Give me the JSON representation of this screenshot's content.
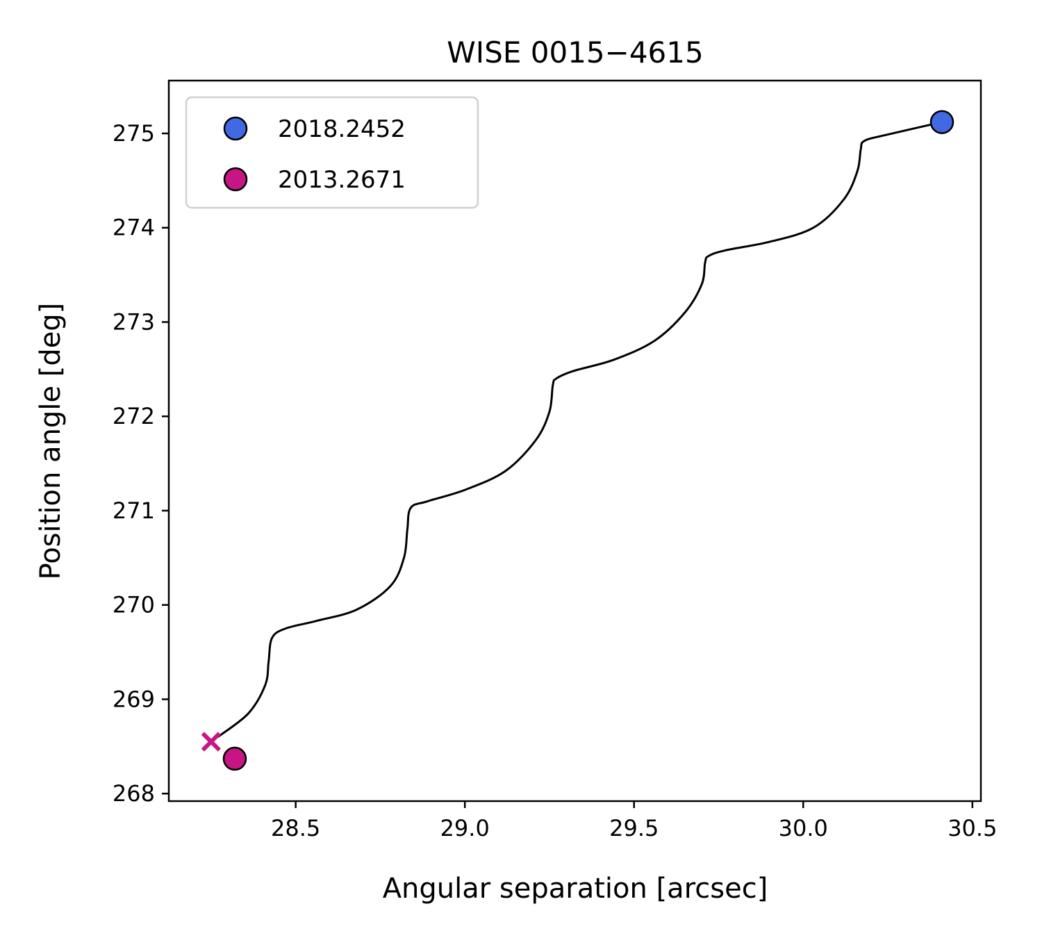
{
  "chart_data": {
    "type": "line",
    "title": "WISE 0015−4615",
    "xlabel": "Angular separation [arcsec]",
    "ylabel": "Position angle [deg]",
    "xlim": [
      28.125,
      30.525
    ],
    "ylim": [
      267.92,
      275.56
    ],
    "xticks": [
      28.5,
      29.0,
      29.5,
      30.0,
      30.5
    ],
    "xtick_labels": [
      "28.5",
      "29.0",
      "29.5",
      "30.0",
      "30.5"
    ],
    "yticks": [
      268,
      269,
      270,
      271,
      272,
      273,
      274,
      275
    ],
    "ytick_labels": [
      "268",
      "269",
      "270",
      "271",
      "272",
      "273",
      "274",
      "275"
    ],
    "grid": false,
    "legend": "upper-left",
    "track": {
      "color": "#000000",
      "x": [
        28.27,
        28.36,
        28.41,
        28.42,
        28.43,
        28.47,
        28.56,
        28.68,
        28.78,
        28.82,
        28.83,
        28.84,
        28.89,
        29.0,
        29.12,
        29.21,
        29.25,
        29.26,
        29.27,
        29.32,
        29.44,
        29.56,
        29.65,
        29.7,
        29.71,
        29.72,
        29.77,
        29.9,
        30.03,
        30.12,
        30.16,
        30.17,
        30.18,
        30.24,
        30.41
      ],
      "y": [
        268.6,
        268.85,
        269.15,
        269.4,
        269.65,
        269.75,
        269.83,
        269.95,
        270.2,
        270.5,
        270.8,
        271.03,
        271.1,
        271.22,
        271.42,
        271.75,
        272.05,
        272.33,
        272.4,
        272.48,
        272.6,
        272.8,
        273.1,
        273.4,
        273.63,
        273.7,
        273.76,
        273.85,
        274.0,
        274.3,
        274.6,
        274.83,
        274.92,
        274.98,
        275.12
      ]
    },
    "series": [
      {
        "name": "2018.2452",
        "x": 30.41,
        "y": 275.12,
        "color": "#4169e1",
        "marker": "circle"
      },
      {
        "name": "2013.2671",
        "x": 28.32,
        "y": 268.37,
        "color": "#c71585",
        "marker": "circle"
      }
    ],
    "extra_marker": {
      "x": 28.25,
      "y": 268.55,
      "color": "#c71585",
      "marker": "x"
    }
  }
}
